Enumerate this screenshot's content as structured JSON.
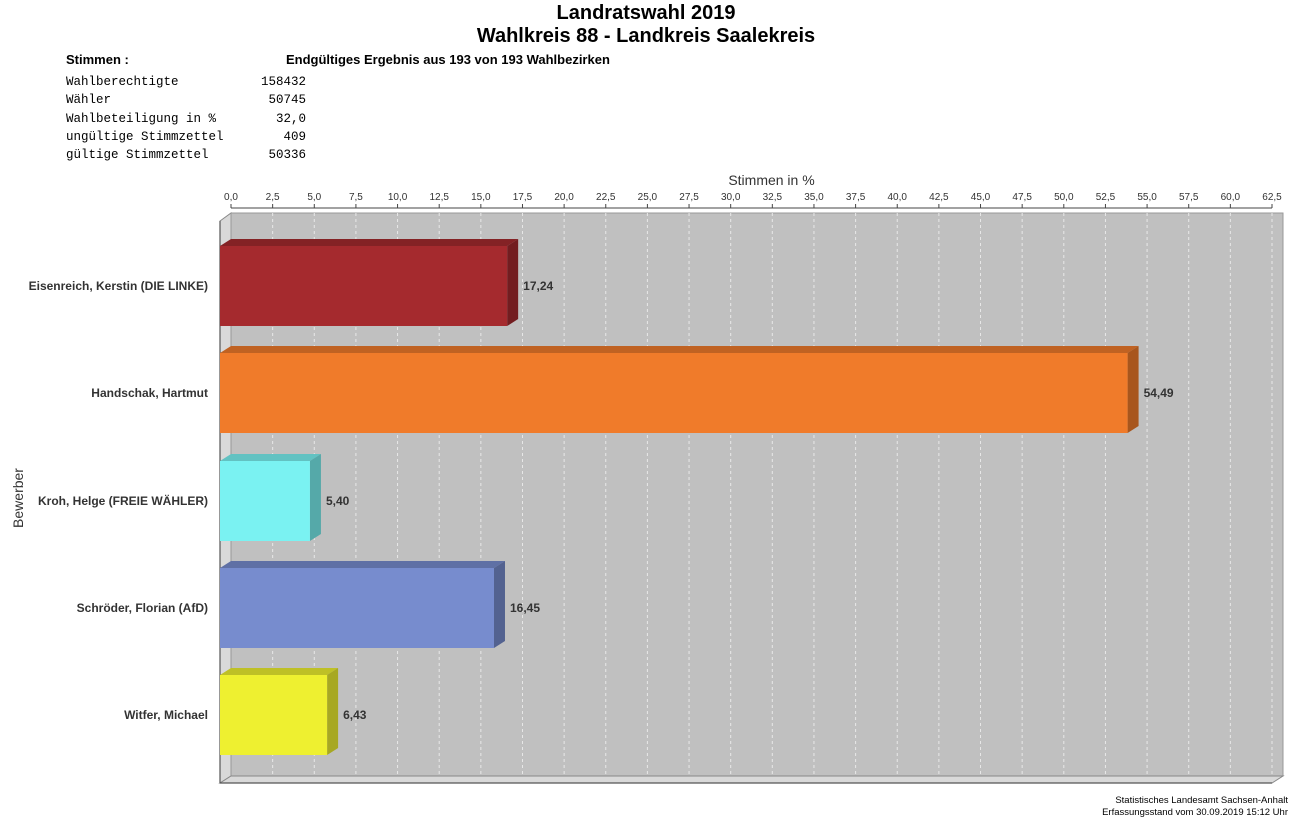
{
  "title_line1": "Landratswahl 2019",
  "title_line2": "Wahlkreis 88 - Landkreis Saalekreis",
  "stimmen_label": "Stimmen  :",
  "result_label": "Endgültiges Ergebnis aus 193 von 193 Wahlbezirken",
  "stats": [
    {
      "label": "Wahlberechtigte",
      "value": "158432"
    },
    {
      "label": "Wähler",
      "value": "50745"
    },
    {
      "label": "Wahlbeteiligung in %",
      "value": "32,0"
    },
    {
      "label": "ungültige Stimmzettel",
      "value": "409"
    },
    {
      "label": "gültige Stimmzettel",
      "value": "50336"
    }
  ],
  "footer_line1": "Statistisches Landesamt Sachsen-Anhalt",
  "footer_line2": "Erfassungsstand vom 30.09.2019 15:12 Uhr",
  "chart_data": {
    "type": "bar",
    "orientation": "horizontal",
    "xlabel": "Stimmen in %",
    "ylabel": "Bewerber",
    "xlim": [
      0,
      62.5
    ],
    "tick_step": 2.5,
    "grid": true,
    "axis_position": "top",
    "categories": [
      "Eisenreich, Kerstin (DIE LINKE)",
      "Handschak, Hartmut",
      "Kroh, Helge (FREIE WÄHLER)",
      "Schröder, Florian (AfD)",
      "Witfer, Michael"
    ],
    "values": [
      17.24,
      54.49,
      5.4,
      16.45,
      6.43
    ],
    "value_labels": [
      "17,24",
      "54,49",
      "5,40",
      "16,45",
      "6,43"
    ],
    "colors": [
      "#a52a2e",
      "#f07b2a",
      "#7af2f2",
      "#778cce",
      "#eef030"
    ],
    "plot_background": "#c0c0c0"
  }
}
